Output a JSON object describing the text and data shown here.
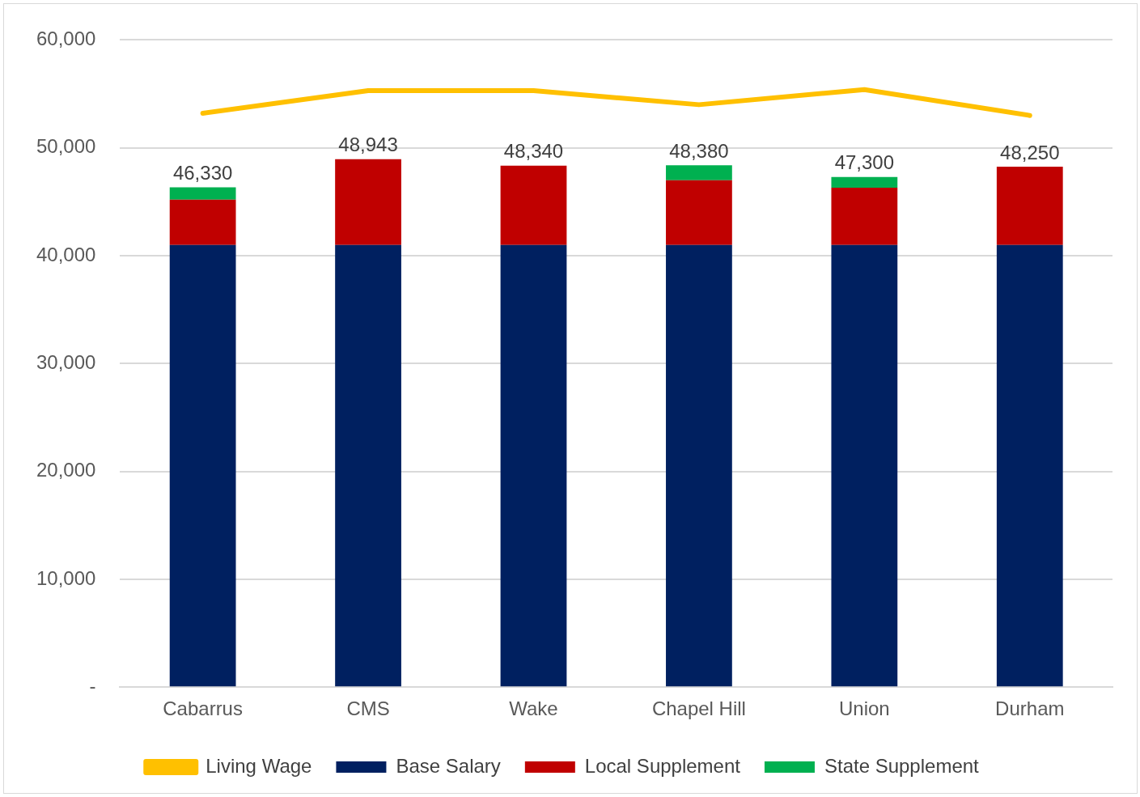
{
  "chart_data": {
    "type": "bar",
    "stacked": true,
    "categories": [
      "Cabarrus",
      "CMS",
      "Wake",
      "Chapel Hill",
      "Union",
      "Durham"
    ],
    "series": [
      {
        "name": "Base Salary",
        "color": "#002060",
        "values": [
          41000,
          41000,
          41000,
          41000,
          41000,
          41000
        ]
      },
      {
        "name": "Local Supplement",
        "color": "#c00000",
        "values": [
          4200,
          7943,
          7340,
          6000,
          5300,
          7250
        ]
      },
      {
        "name": "State Supplement",
        "color": "#00b050",
        "values": [
          1130,
          null,
          null,
          1380,
          1000,
          null
        ]
      },
      {
        "name": "Living Wage",
        "type": "line",
        "color": "#ffc000",
        "values": [
          53200,
          55300,
          55300,
          54000,
          55400,
          53000
        ]
      }
    ],
    "totals": [
      "46,330",
      "48,943",
      "48,340",
      "48,380",
      "47,300",
      "48,250"
    ],
    "ylim": [
      0,
      60000
    ],
    "yticks": [
      {
        "value": 0,
        "label": "-"
      },
      {
        "value": 10000,
        "label": "10,000"
      },
      {
        "value": 20000,
        "label": "20,000"
      },
      {
        "value": 30000,
        "label": "30,000"
      },
      {
        "value": 40000,
        "label": "40,000"
      },
      {
        "value": 50000,
        "label": "50,000"
      },
      {
        "value": 60000,
        "label": "60,000"
      }
    ],
    "grid": "y",
    "legend": "bottom",
    "marker": "none"
  }
}
